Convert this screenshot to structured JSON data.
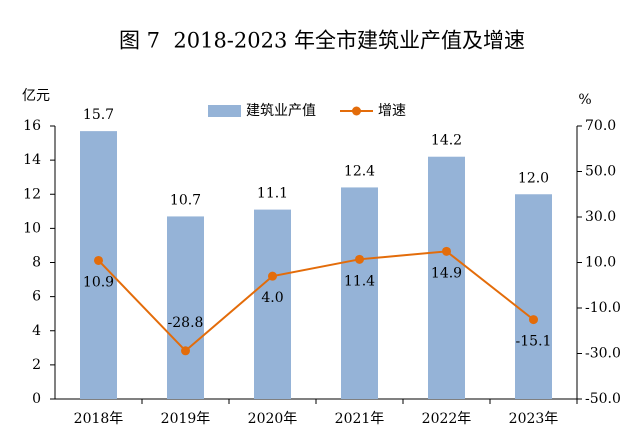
{
  "chart_data": {
    "type": "bar_line",
    "title": "图 7  2018-2023 年全市建筑业产值及增速",
    "y_label": "亿元",
    "y2_label": "%",
    "categories": [
      "2018年",
      "2019年",
      "2020年",
      "2021年",
      "2022年",
      "2023年"
    ],
    "series": [
      {
        "name": "建筑业产值",
        "type": "bar",
        "color": "#95b3d7",
        "values": [
          15.7,
          10.7,
          11.1,
          12.4,
          14.2,
          12.0
        ],
        "value_labels": [
          "15.7",
          "10.7",
          "11.1",
          "12.4",
          "14.2",
          "12.0"
        ]
      },
      {
        "name": "增速",
        "type": "line",
        "axis": "y2",
        "color": "#e36c0a",
        "values": [
          10.9,
          -28.8,
          4.0,
          11.4,
          14.9,
          -15.1
        ],
        "value_labels": [
          "10.9",
          "-28.8",
          "4.0",
          "11.4",
          "14.9",
          "-15.1"
        ]
      }
    ],
    "ylim": [
      0,
      16
    ],
    "yticks": [
      0,
      2,
      4,
      6,
      8,
      10,
      12,
      14,
      16
    ],
    "y2lim": [
      -50,
      70
    ],
    "y2ticks": [
      {
        "value": 70,
        "label": "70.0"
      },
      {
        "value": 50,
        "label": "50.0"
      },
      {
        "value": 30,
        "label": "30.0"
      },
      {
        "value": 10,
        "label": "10.0"
      },
      {
        "value": -10,
        "label": "-10.0"
      },
      {
        "value": -30,
        "label": "-30.0"
      },
      {
        "value": -50,
        "label": "-50.0"
      }
    ],
    "grid": false,
    "legend": "top"
  }
}
